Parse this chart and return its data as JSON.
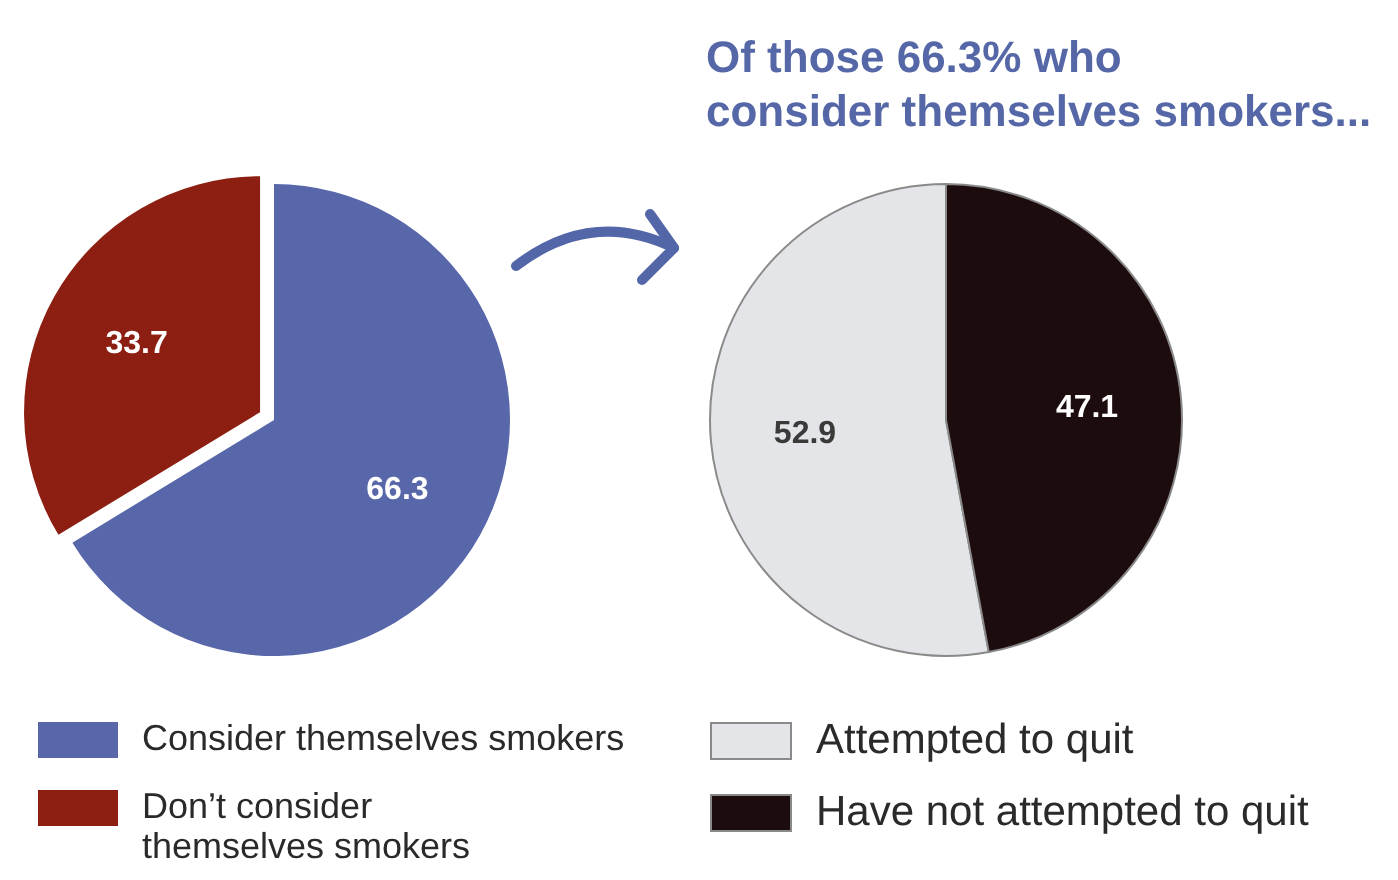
{
  "chart_data": [
    {
      "type": "pie",
      "categories": [
        "Consider themselves smokers",
        "Don’t consider\nthemselves smokers"
      ],
      "values": [
        66.3,
        33.7
      ],
      "colors": [
        "#5767a9",
        "#8c1f12"
      ],
      "data_labels": true,
      "legend": "bottom"
    },
    {
      "type": "pie",
      "title": "Of those 66.3% who\nconsider themselves smokers...",
      "categories": [
        "Attempted to quit",
        "Have not attempted to quit"
      ],
      "values": [
        52.9,
        47.1
      ],
      "colors": [
        "#e3e5e8",
        "#1c0c0e"
      ],
      "data_labels": true,
      "legend": "bottom"
    }
  ]
}
